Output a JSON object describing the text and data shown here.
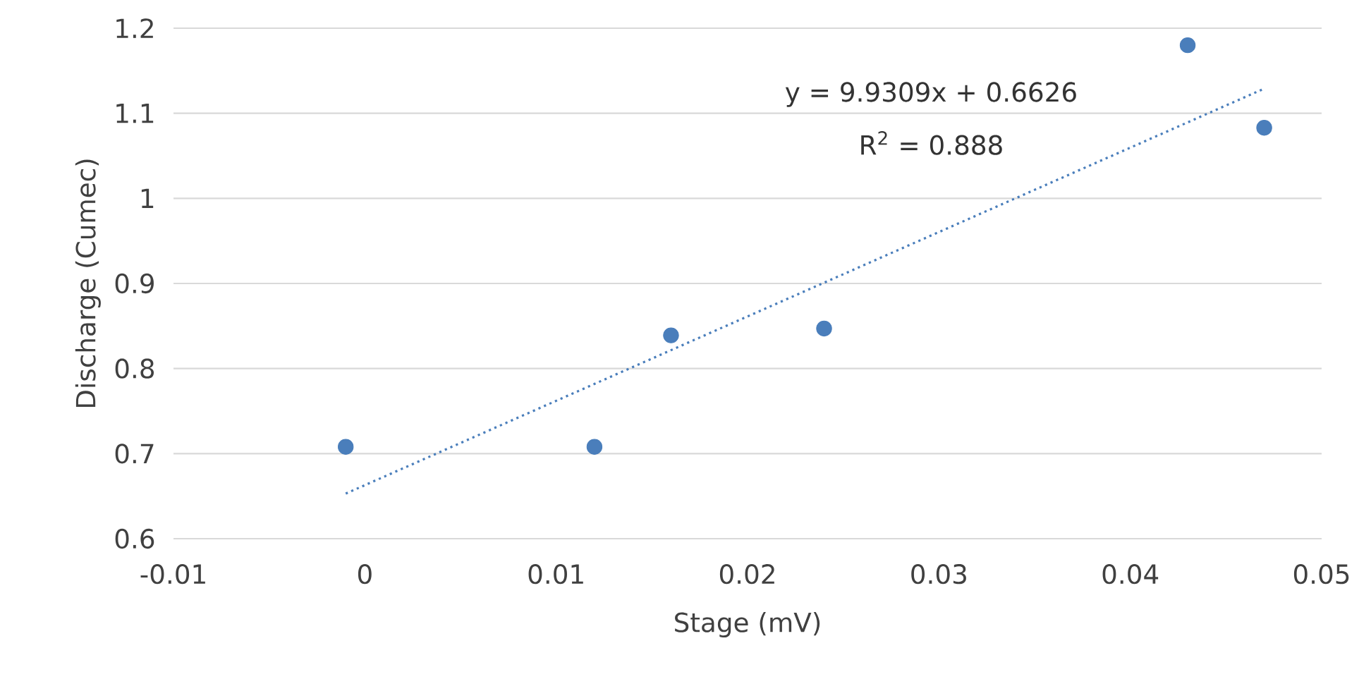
{
  "chart_data": {
    "type": "scatter",
    "xlabel": "Stage (mV)",
    "ylabel": "Discharge (Cumec)",
    "xlim": [
      -0.01,
      0.05
    ],
    "xticks": [
      -0.01,
      0,
      0.01,
      0.02,
      0.03,
      0.04,
      0.05
    ],
    "ylim": [
      0.6,
      1.2
    ],
    "yticks": [
      0.6,
      0.7,
      0.8,
      0.9,
      1,
      1.1,
      1.2
    ],
    "grid": "y",
    "x": [
      -0.001,
      0.012,
      0.016,
      0.024,
      0.043,
      0.047
    ],
    "series": [
      {
        "color": "#4a7ebb",
        "marker": "circle",
        "values": [
          0.708,
          0.708,
          0.839,
          0.847,
          1.18,
          1.083
        ]
      },
      {
        "type": "line",
        "color": "#4a7ebb",
        "marker": "none",
        "line_style": "dotted",
        "x": [
          -0.001,
          0.047
        ],
        "values": [
          0.653,
          1.129
        ]
      }
    ],
    "annotations": [
      "y = 9.9309x + 0.6626",
      "R$^{2}$ = 0.888"
    ]
  }
}
